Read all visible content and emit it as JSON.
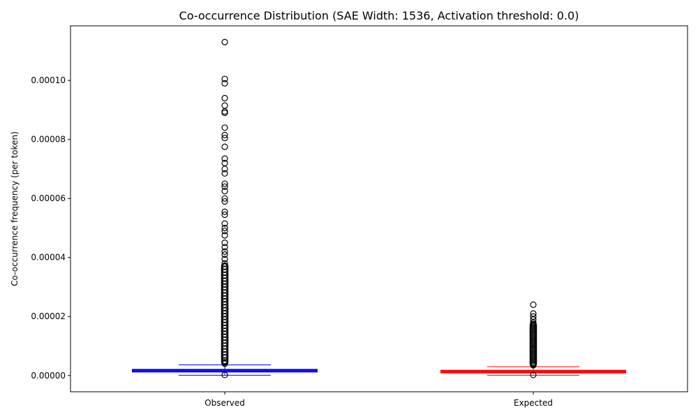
{
  "chart_data": {
    "type": "box",
    "title": "Co-occurrence Distribution (SAE Width: 1536, Activation threshold: 0.0)",
    "xlabel": "",
    "ylabel": "Co-occurrence frequency (per token)",
    "ylim": [
      -5.5e-06,
      0.0001185
    ],
    "yticks": [
      "0.00000",
      "0.00002",
      "0.00004",
      "0.00006",
      "0.00008",
      "0.00010"
    ],
    "categories": [
      "Observed",
      "Expected"
    ],
    "series": [
      {
        "category": "Observed",
        "color": "#0000ff",
        "q1": 1.3e-06,
        "median": 1.5e-06,
        "q3": 2e-06,
        "whisker_low": 1e-07,
        "whisker_high": 3.6e-06,
        "outliers": [
          2e-07,
          4e-06,
          4.5e-06,
          5e-06,
          6e-06,
          7e-06,
          8e-06,
          9e-06,
          1e-05,
          1.1e-05,
          1.2e-05,
          1.3e-05,
          1.4e-05,
          1.5e-05,
          1.6e-05,
          1.7e-05,
          1.8e-05,
          1.9e-05,
          2e-05,
          2.1e-05,
          2.2e-05,
          2.3e-05,
          2.4e-05,
          2.5e-05,
          2.6e-05,
          2.7e-05,
          2.8e-05,
          2.9e-05,
          3e-05,
          3.1e-05,
          3.2e-05,
          3.3e-05,
          3.4e-05,
          3.5e-05,
          3.6e-05,
          3.7e-05,
          3.8e-05,
          3.95e-05,
          4.1e-05,
          4.2e-05,
          4.35e-05,
          4.5e-05,
          4.75e-05,
          4.9e-05,
          5e-05,
          5.15e-05,
          5.45e-05,
          5.55e-05,
          5.9e-05,
          6e-05,
          6.25e-05,
          6.4e-05,
          6.5e-05,
          6.85e-05,
          7e-05,
          7.2e-05,
          7.35e-05,
          7.75e-05,
          8.05e-05,
          8.15e-05,
          8.4e-05,
          8.9e-05,
          8.95e-05,
          9.15e-05,
          9.4e-05,
          9.9e-05,
          0.0001005,
          0.000113
        ]
      },
      {
        "category": "Expected",
        "color": "#ff0000",
        "q1": 1e-06,
        "median": 1.2e-06,
        "q3": 1.7e-06,
        "whisker_low": 1e-07,
        "whisker_high": 3e-06,
        "outliers": [
          2e-07,
          3.5e-06,
          4e-06,
          4.5e-06,
          5e-06,
          5.5e-06,
          6e-06,
          6.5e-06,
          7e-06,
          7.5e-06,
          8e-06,
          8.5e-06,
          9e-06,
          9.5e-06,
          1e-05,
          1.05e-05,
          1.1e-05,
          1.15e-05,
          1.2e-05,
          1.25e-05,
          1.3e-05,
          1.35e-05,
          1.4e-05,
          1.45e-05,
          1.5e-05,
          1.55e-05,
          1.6e-05,
          1.65e-05,
          1.7e-05,
          1.75e-05,
          1.8e-05,
          1.9e-05,
          2e-05,
          2.1e-05,
          2.4e-05
        ]
      }
    ],
    "grid": false,
    "legend": "none"
  }
}
